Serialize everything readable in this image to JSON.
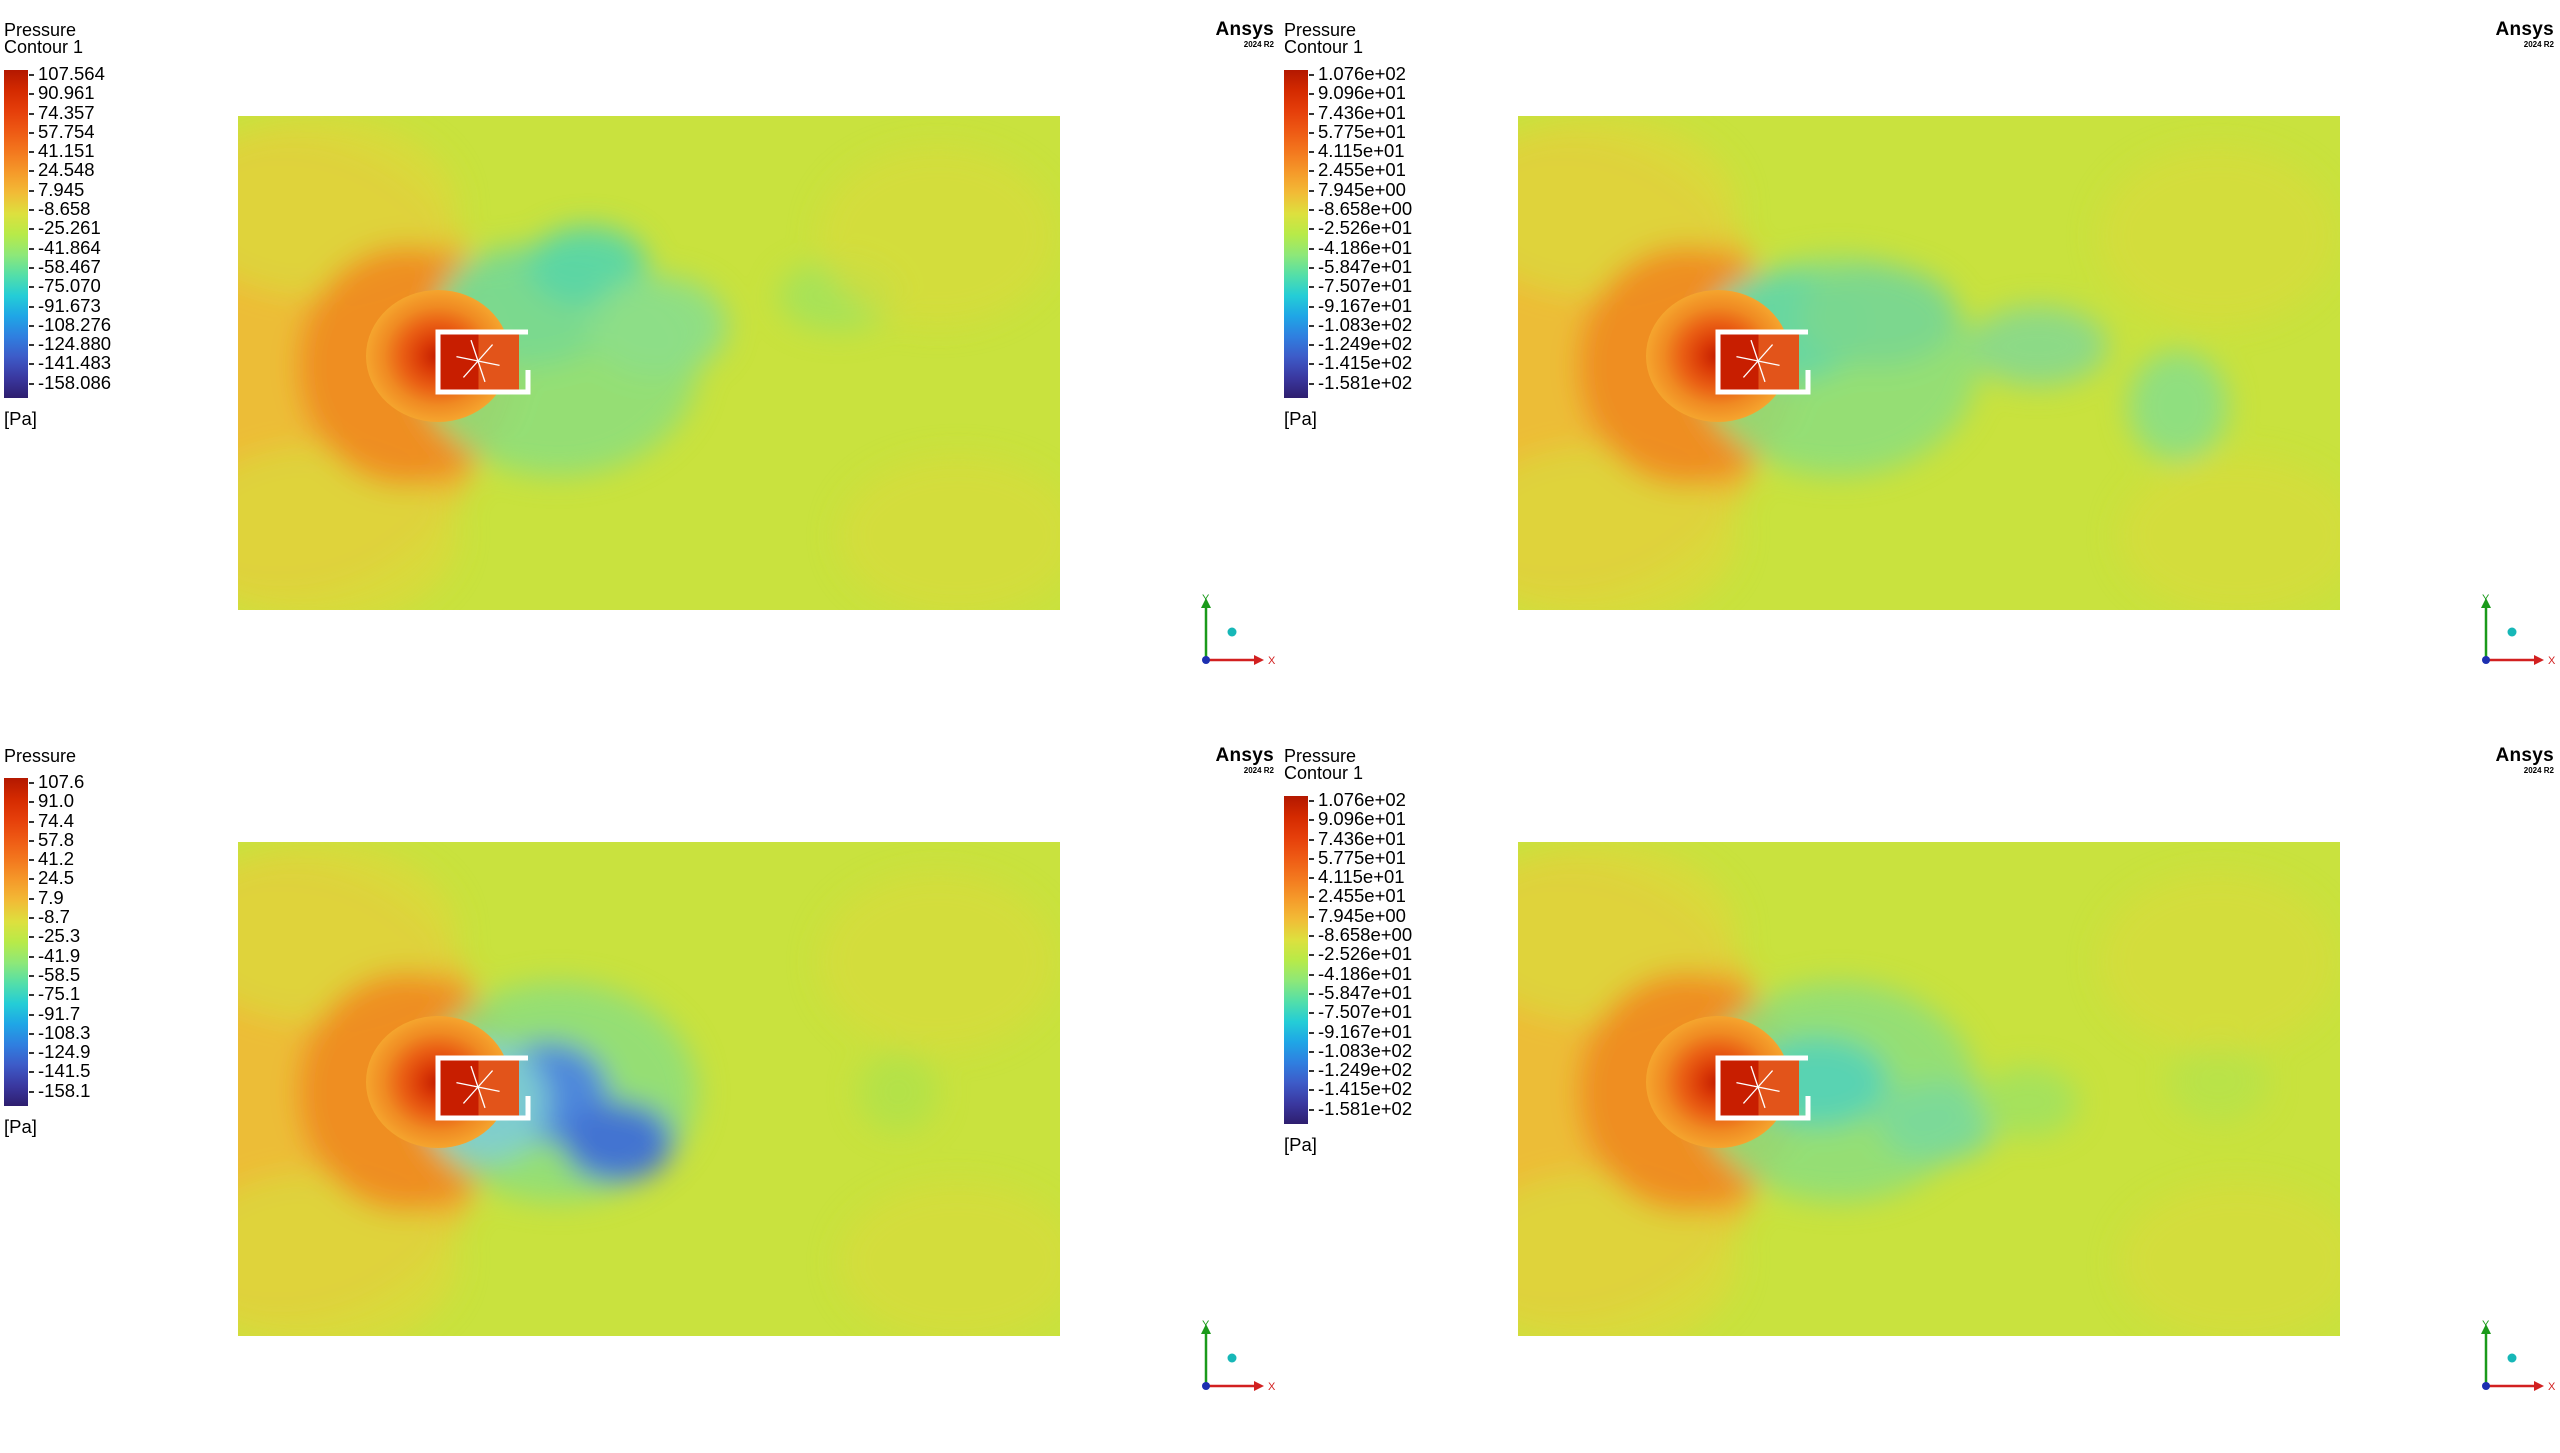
{
  "panels": [
    {
      "title": "Pressure\nContour 1",
      "labels": [
        "107.564",
        "90.961",
        "74.357",
        "57.754",
        "41.151",
        "24.548",
        "7.945",
        "-8.658",
        "-25.261",
        "-41.864",
        "-58.467",
        "-75.070",
        "-91.673",
        "-108.276",
        "-124.880",
        "-141.483",
        "-158.086"
      ],
      "unit": "[Pa]",
      "brand": "Ansys",
      "version": "2024 R2",
      "axes": {
        "x": "X",
        "y": "Y"
      }
    },
    {
      "title": "Pressure\nContour 1",
      "labels": [
        "1.076e+02",
        "9.096e+01",
        "7.436e+01",
        "5.775e+01",
        "4.115e+01",
        "2.455e+01",
        "7.945e+00",
        "-8.658e+00",
        "-2.526e+01",
        "-4.186e+01",
        "-5.847e+01",
        "-7.507e+01",
        "-9.167e+01",
        "-1.083e+02",
        "-1.249e+02",
        "-1.415e+02",
        "-1.581e+02"
      ],
      "unit": "[Pa]",
      "brand": "Ansys",
      "version": "2024 R2",
      "axes": {
        "x": "X",
        "y": "Y"
      }
    },
    {
      "title": "Pressure",
      "labels": [
        "107.6",
        "91.0",
        "74.4",
        "57.8",
        "41.2",
        "24.5",
        "7.9",
        "-8.7",
        "-25.3",
        "-41.9",
        "-58.5",
        "-75.1",
        "-91.7",
        "-108.3",
        "-124.9",
        "-141.5",
        "-158.1"
      ],
      "unit": "[Pa]",
      "brand": "Ansys",
      "version": "2024 R2",
      "axes": {
        "x": "X",
        "y": "Y"
      }
    },
    {
      "title": "Pressure\nContour 1",
      "labels": [
        "1.076e+02",
        "9.096e+01",
        "7.436e+01",
        "5.775e+01",
        "4.115e+01",
        "2.455e+01",
        "7.945e+00",
        "-8.658e+00",
        "-2.526e+01",
        "-4.186e+01",
        "-5.847e+01",
        "-7.507e+01",
        "-9.167e+01",
        "-1.083e+02",
        "-1.249e+02",
        "-1.415e+02",
        "-1.581e+02"
      ],
      "unit": "[Pa]",
      "brand": "Ansys",
      "version": "2024 R2",
      "axes": {
        "x": "X",
        "y": "Y"
      }
    }
  ],
  "colormap": [
    "#b31800",
    "#d42a00",
    "#e53e0a",
    "#ee5a14",
    "#f3781e",
    "#f59a2a",
    "#f2bb36",
    "#dde03e",
    "#b8ea48",
    "#8ee878",
    "#54dfa8",
    "#24cdd6",
    "#1fa6e6",
    "#2f7fe0",
    "#3d5bc8",
    "#3a38a0",
    "#2e1e6e"
  ],
  "field_colors": {
    "background": "#c9e23e",
    "high": "#f06a1a",
    "low": "#4a84e0"
  }
}
